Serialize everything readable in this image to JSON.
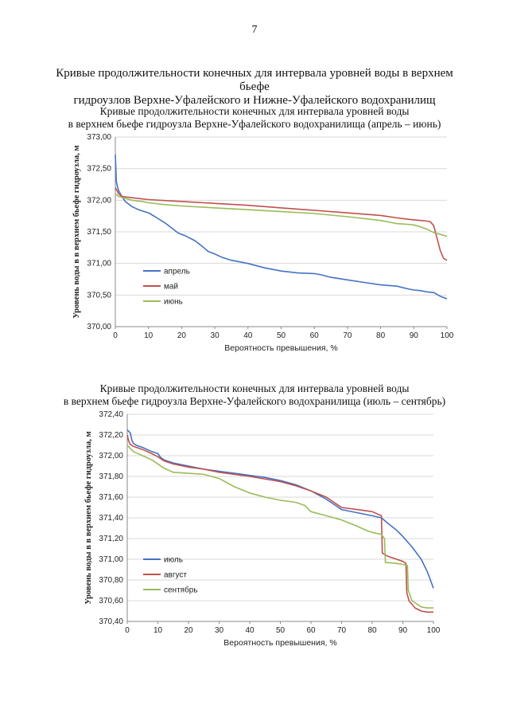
{
  "page_number": "7",
  "page_title_line1": "Кривые продолжительности конечных для интервала уровней воды в верхнем бьефе",
  "page_title_line2": "гидроузлов Верхне-Уфалейского и Нижне-Уфалейского водохранилищ",
  "chart_data": [
    {
      "type": "line",
      "title_line1": "Кривые продолжительности конечных для интервала уровней воды",
      "title_line2": "в верхнем бьефе гидроузла Верхне-Уфалейского водохранилища (апрель – июнь)",
      "xlabel": "Вероятность превышения, %",
      "ylabel": "Уровень воды в в верхнем бьефе гидроузла, м",
      "xlim": [
        0,
        100
      ],
      "ylim": [
        370.0,
        373.0
      ],
      "xticks": [
        "0",
        "10",
        "20",
        "30",
        "40",
        "50",
        "60",
        "70",
        "80",
        "90",
        "100"
      ],
      "yticks": [
        "370,00",
        "370,50",
        "371,00",
        "371,50",
        "372,00",
        "372,50",
        "373,00"
      ],
      "grid": "horizontal",
      "legend_placement": "lower-left",
      "series": [
        {
          "name": "апрель",
          "color": "#4472C4",
          "x": [
            0,
            0.3,
            0.6,
            1,
            2,
            3,
            5,
            7,
            10,
            12,
            15,
            17,
            19,
            21,
            24,
            26,
            28,
            29,
            30,
            32,
            35,
            40,
            45,
            50,
            55,
            60,
            62,
            65,
            70,
            75,
            80,
            85,
            88,
            90,
            92,
            94,
            96,
            98,
            100
          ],
          "y": [
            372.72,
            372.3,
            372.22,
            372.15,
            372.06,
            371.98,
            371.9,
            371.85,
            371.8,
            371.74,
            371.64,
            371.56,
            371.48,
            371.44,
            371.36,
            371.28,
            371.19,
            371.17,
            371.15,
            371.1,
            371.05,
            371.0,
            370.93,
            370.88,
            370.85,
            370.84,
            370.82,
            370.78,
            370.74,
            370.7,
            370.66,
            370.64,
            370.6,
            370.58,
            370.57,
            370.55,
            370.54,
            370.48,
            370.44
          ]
        },
        {
          "name": "май",
          "color": "#C0504D",
          "x": [
            0,
            0.5,
            1,
            2,
            5,
            10,
            20,
            30,
            40,
            50,
            60,
            70,
            80,
            85,
            88,
            90,
            92,
            94,
            95,
            96,
            97,
            98,
            99,
            100
          ],
          "y": [
            372.2,
            372.15,
            372.1,
            372.06,
            372.04,
            372.01,
            371.98,
            371.95,
            371.92,
            371.88,
            371.84,
            371.8,
            371.76,
            371.72,
            371.7,
            371.69,
            371.68,
            371.67,
            371.66,
            371.6,
            371.4,
            371.2,
            371.08,
            371.05
          ]
        },
        {
          "name": "июнь",
          "color": "#9BBB59",
          "x": [
            0,
            1,
            3,
            5,
            8,
            10,
            15,
            20,
            30,
            40,
            50,
            60,
            70,
            80,
            83,
            85,
            88,
            90,
            92,
            94,
            96,
            98,
            100
          ],
          "y": [
            372.1,
            372.06,
            372.03,
            372.0,
            371.98,
            371.96,
            371.93,
            371.91,
            371.88,
            371.85,
            371.82,
            371.79,
            371.74,
            371.68,
            371.65,
            371.63,
            371.62,
            371.61,
            371.58,
            371.54,
            371.49,
            371.46,
            371.43
          ]
        }
      ]
    },
    {
      "type": "line",
      "title_line1": "Кривые продолжительности конечных для интервала уровней воды",
      "title_line2": "в верхнем бьефе гидроузла Верхне-Уфалейского водохранилища (июль – сентябрь)",
      "xlabel": "Вероятность превышения, %",
      "ylabel": "Уровень воды в в верхнем бьефе гидроузла, м",
      "xlim": [
        0,
        100
      ],
      "ylim": [
        370.4,
        372.4
      ],
      "xticks": [
        "0",
        "10",
        "20",
        "30",
        "40",
        "50",
        "60",
        "70",
        "80",
        "90",
        "100"
      ],
      "yticks": [
        "370,40",
        "370,60",
        "370,80",
        "371,00",
        "371,20",
        "371,40",
        "371,60",
        "371,80",
        "372,00",
        "372,20",
        "372,40"
      ],
      "grid": "horizontal",
      "legend_placement": "lower-left",
      "series": [
        {
          "name": "июль",
          "color": "#4472C4",
          "x": [
            0,
            1,
            1.5,
            2,
            3,
            5,
            8,
            10,
            11,
            12,
            15,
            20,
            25,
            30,
            35,
            40,
            45,
            50,
            55,
            60,
            65,
            68,
            70,
            75,
            80,
            83,
            85,
            88,
            90,
            93,
            96,
            98,
            100
          ],
          "y": [
            372.25,
            372.22,
            372.15,
            372.12,
            372.1,
            372.08,
            372.04,
            372.02,
            371.98,
            371.96,
            371.93,
            371.9,
            371.87,
            371.85,
            371.83,
            371.81,
            371.79,
            371.76,
            371.72,
            371.66,
            371.58,
            371.52,
            371.48,
            371.45,
            371.42,
            371.4,
            371.35,
            371.28,
            371.22,
            371.12,
            371.0,
            370.88,
            370.72
          ]
        },
        {
          "name": "август",
          "color": "#C0504D",
          "x": [
            0,
            0.5,
            1,
            2,
            5,
            8,
            10,
            12,
            15,
            20,
            25,
            30,
            40,
            50,
            55,
            60,
            65,
            68,
            70,
            75,
            80,
            83,
            83.3,
            85,
            88,
            90,
            91,
            91.3,
            92,
            94,
            96,
            98,
            100
          ],
          "y": [
            372.2,
            372.14,
            372.11,
            372.09,
            372.06,
            372.02,
            371.99,
            371.95,
            371.92,
            371.89,
            371.87,
            371.84,
            371.8,
            371.75,
            371.71,
            371.66,
            371.6,
            371.54,
            371.5,
            371.48,
            371.46,
            371.42,
            371.06,
            371.03,
            371.0,
            370.98,
            370.96,
            370.68,
            370.6,
            370.53,
            370.5,
            370.49,
            370.49
          ]
        },
        {
          "name": "сентябрь",
          "color": "#9BBB59",
          "x": [
            0,
            1,
            2,
            5,
            8,
            10,
            12,
            15,
            20,
            25,
            30,
            35,
            40,
            45,
            50,
            55,
            58,
            60,
            65,
            70,
            75,
            78,
            80,
            83,
            84,
            84.3,
            88,
            90,
            91.5,
            91.8,
            93,
            95,
            96,
            98,
            100
          ],
          "y": [
            372.1,
            372.07,
            372.04,
            372.0,
            371.96,
            371.92,
            371.88,
            371.84,
            371.83,
            371.82,
            371.78,
            371.7,
            371.64,
            371.6,
            371.57,
            371.55,
            371.52,
            371.46,
            371.42,
            371.38,
            371.32,
            371.28,
            371.26,
            371.24,
            371.2,
            370.97,
            370.96,
            370.95,
            370.94,
            370.7,
            370.6,
            370.56,
            370.54,
            370.53,
            370.53
          ]
        }
      ]
    }
  ]
}
